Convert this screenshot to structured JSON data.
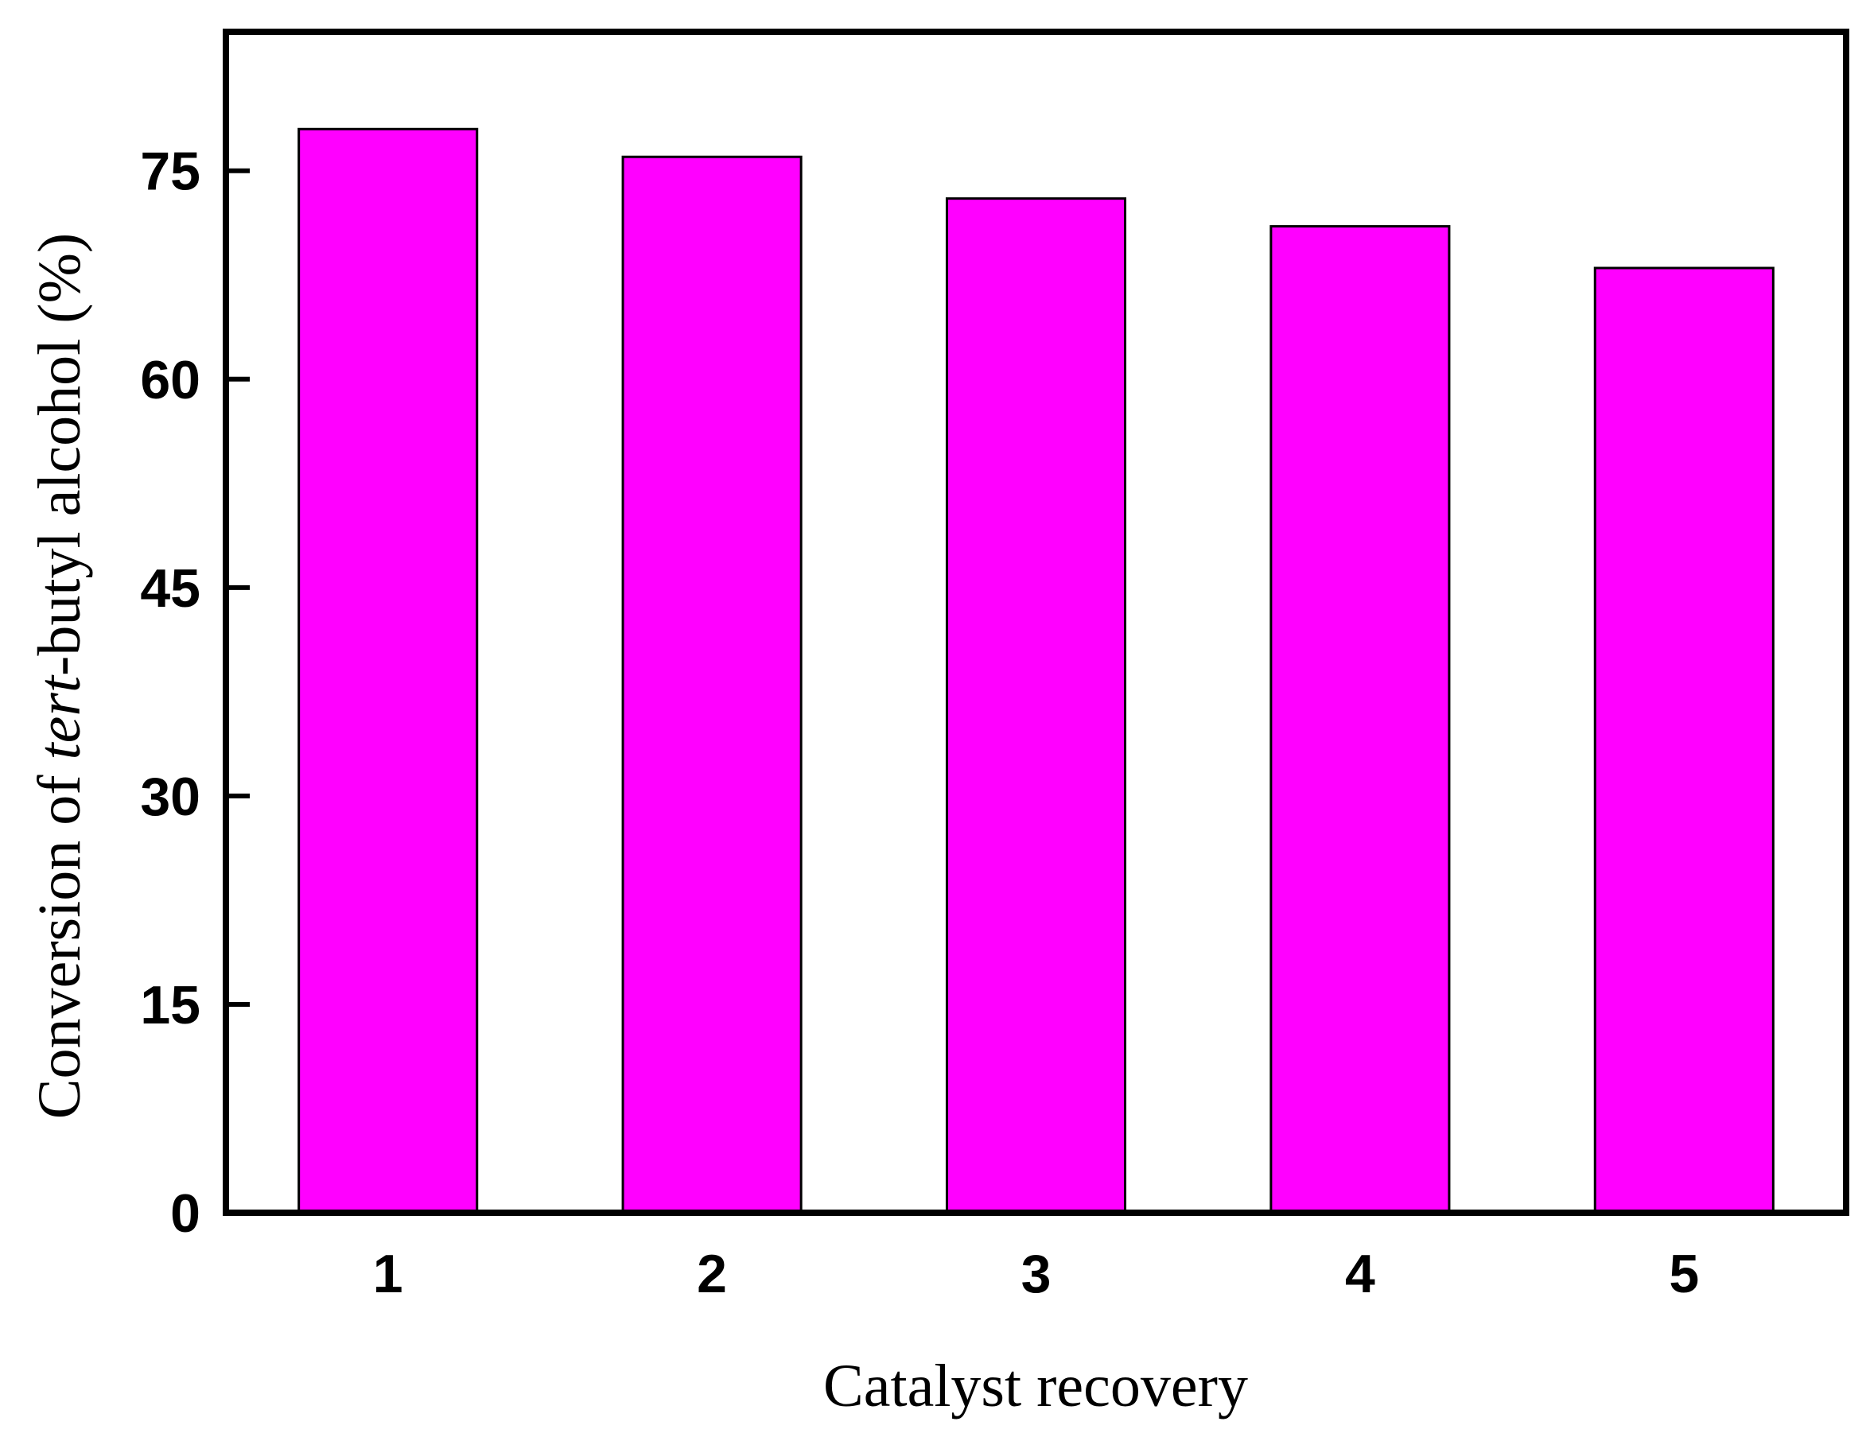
{
  "chart_data": {
    "type": "bar",
    "categories": [
      "1",
      "2",
      "3",
      "4",
      "5"
    ],
    "values": [
      78,
      76,
      73,
      71,
      68
    ],
    "xlabel": "Catalyst recovery",
    "ylabel_parts": [
      "Conversion of ",
      "tert",
      "-butyl alcohol (%)"
    ],
    "ylim": [
      0,
      85
    ],
    "yticks": [
      0,
      15,
      30,
      45,
      60,
      75
    ],
    "ytick_labels": [
      "0",
      "15",
      "30",
      "45",
      "60",
      "75"
    ],
    "bar_color": "#ff00ff",
    "bar_edge_color": "#000000",
    "grid": false,
    "legend": "none"
  }
}
